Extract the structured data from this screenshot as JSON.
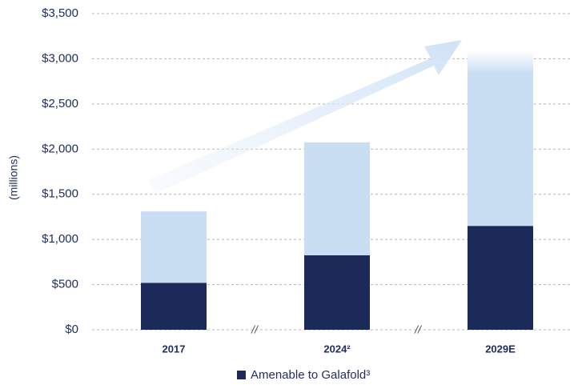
{
  "chart_data": {
    "type": "stacked_bar",
    "y_axis_label": "(millions)",
    "categories": [
      "2017",
      "2024²",
      "2029E"
    ],
    "series": [
      {
        "name": "Amenable to Galafold³",
        "color": "#1c2a5a",
        "values": [
          520,
          825,
          1150
        ]
      },
      {
        "color": "#c9ddf3",
        "values": [
          790,
          1250,
          1925
        ]
      }
    ],
    "ylim": [
      0,
      3500
    ],
    "yticks": [
      {
        "value": 0,
        "label": "$0"
      },
      {
        "value": 500,
        "label": "$500"
      },
      {
        "value": 1000,
        "label": "$1,000"
      },
      {
        "value": 1500,
        "label": "$1,500"
      },
      {
        "value": 2000,
        "label": "$2,000"
      },
      {
        "value": 2500,
        "label": "$2,500"
      },
      {
        "value": 3000,
        "label": "$3,000"
      },
      {
        "value": 3500,
        "label": "$3,500"
      }
    ],
    "axis_breaks": [
      "//",
      "//"
    ],
    "grid": true,
    "legend": "bottom"
  }
}
